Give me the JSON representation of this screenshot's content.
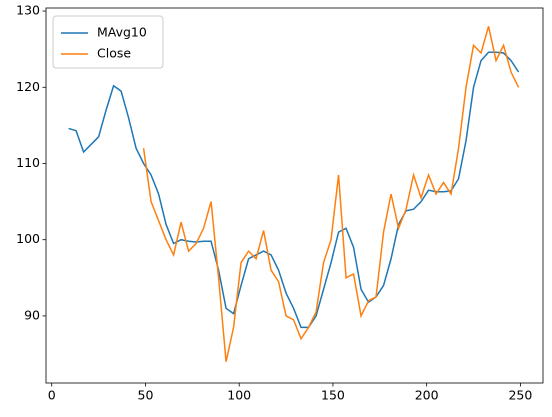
{
  "chart_data": {
    "type": "line",
    "x": [
      9,
      13,
      17,
      21,
      25,
      29,
      33,
      37,
      41,
      45,
      49,
      53,
      57,
      61,
      65,
      69,
      73,
      77,
      81,
      85,
      89,
      93,
      97,
      101,
      105,
      109,
      113,
      117,
      121,
      125,
      129,
      133,
      137,
      141,
      145,
      149,
      153,
      157,
      161,
      165,
      169,
      173,
      177,
      181,
      185,
      189,
      193,
      197,
      201,
      205,
      209,
      213,
      217,
      221,
      225,
      229,
      233,
      237,
      241,
      245,
      249
    ],
    "series": [
      {
        "name": "MAvg10",
        "color": "#1f77b4",
        "values": [
          114.6,
          114.3,
          111.5,
          112.5,
          113.5,
          117,
          120.2,
          119.5,
          116,
          112,
          110,
          108.5,
          106,
          102,
          99.5,
          100,
          99.8,
          99.7,
          99.8,
          99.8,
          96,
          91,
          90.3,
          94,
          97.5,
          98,
          98.5,
          98,
          96,
          93,
          91,
          88.5,
          88.5,
          90,
          93.5,
          97,
          101,
          101.5,
          99,
          93.5,
          91.8,
          92.5,
          94,
          97.5,
          102,
          103.8,
          104,
          105,
          106.5,
          106.3,
          106.3,
          106.4,
          108,
          113,
          120,
          123.5,
          124.6,
          124.6,
          124.5,
          123.5,
          122
        ]
      },
      {
        "name": "Close",
        "color": "#ff7f0e",
        "values": [
          null,
          null,
          null,
          null,
          null,
          null,
          null,
          null,
          null,
          null,
          112,
          105,
          102.5,
          100,
          98,
          102.3,
          98.5,
          99.5,
          101.5,
          105,
          95,
          84,
          88.5,
          97,
          98.5,
          97.5,
          101.2,
          96,
          94.5,
          90,
          89.5,
          87,
          88.5,
          90.5,
          97,
          100,
          108.5,
          95,
          95.5,
          90,
          92,
          92.5,
          101,
          106,
          101.5,
          104,
          108.5,
          105.5,
          108.5,
          106,
          107.5,
          106,
          112,
          120,
          125.5,
          124.5,
          128,
          123.5,
          125.5,
          122,
          120
        ]
      }
    ],
    "xlim": [
      -3.05,
      262.05
    ],
    "xticks": [
      0,
      50,
      100,
      150,
      200,
      250
    ],
    "ylim": [
      81.2,
      130.4
    ],
    "yticks": [
      90,
      100,
      110,
      120,
      130
    ],
    "grid": false,
    "legend": "upper-left"
  }
}
